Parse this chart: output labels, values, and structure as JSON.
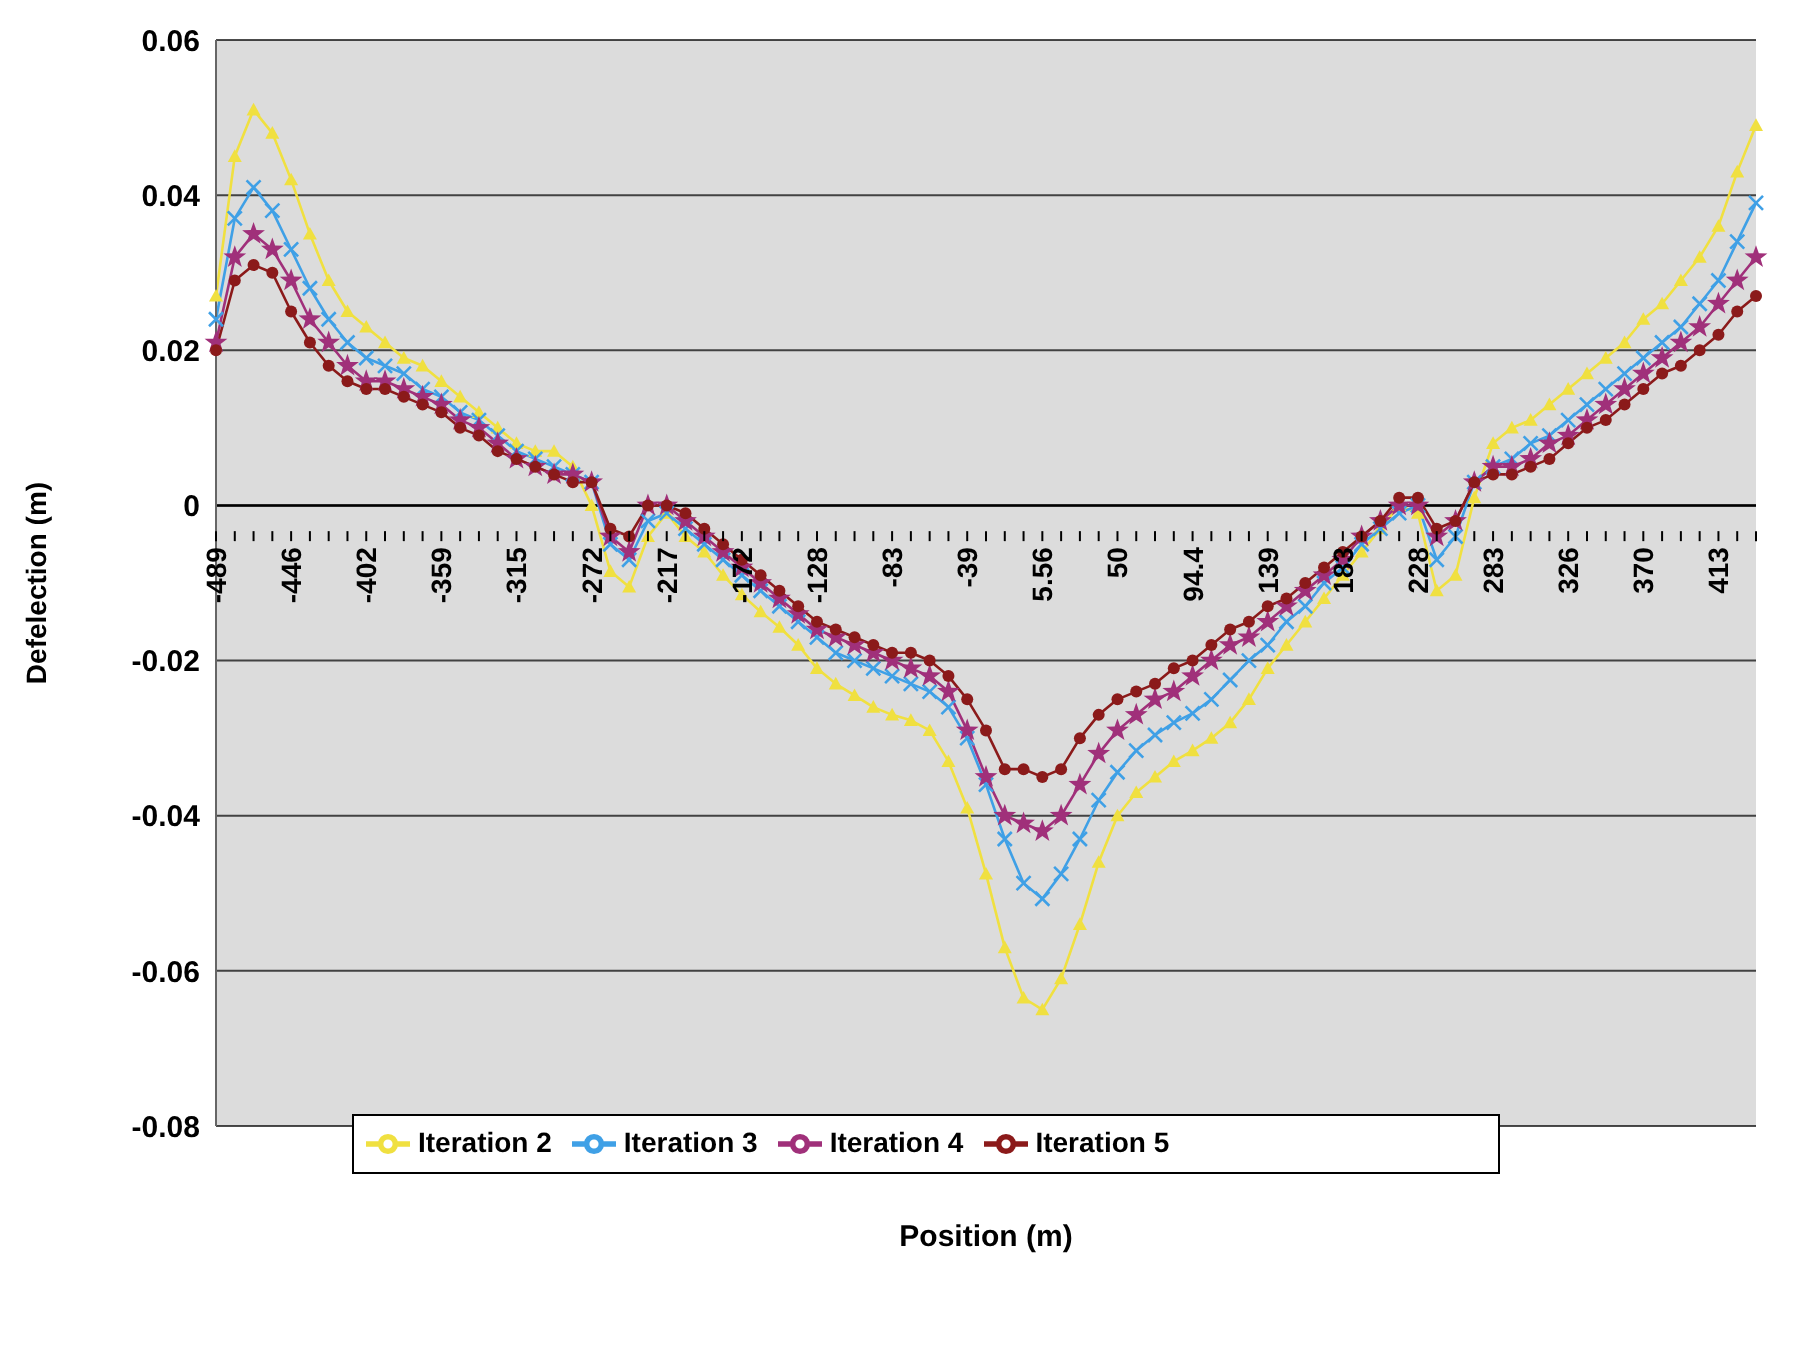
{
  "chart_data": {
    "type": "line",
    "xlabel": "Position (m)",
    "ylabel": "Defelection (m)",
    "categories": [
      "-489",
      null,
      null,
      null,
      "-446",
      null,
      null,
      null,
      "-402",
      null,
      null,
      null,
      "-359",
      null,
      null,
      null,
      "-315",
      null,
      null,
      null,
      "-272",
      null,
      null,
      null,
      "-217",
      null,
      null,
      null,
      "-172",
      null,
      null,
      null,
      "-128",
      null,
      null,
      null,
      "-83",
      null,
      null,
      null,
      "-39",
      null,
      null,
      null,
      "5.56",
      null,
      null,
      null,
      "50",
      null,
      null,
      null,
      "94.4",
      null,
      null,
      null,
      "139",
      null,
      null,
      null,
      "183",
      null,
      null,
      null,
      "228",
      null,
      null,
      null,
      "283",
      null,
      null,
      null,
      "326",
      null,
      null,
      null,
      "370",
      null,
      null,
      null,
      "413",
      null,
      null
    ],
    "ylim": [
      -0.08,
      0.06
    ],
    "yticks": [
      -0.08,
      -0.06,
      -0.04,
      -0.02,
      0,
      0.02,
      0.04,
      0.06
    ],
    "grid": "y",
    "legend": "bottom left",
    "series": [
      {
        "name": "Iteration 2",
        "color": "#f0e040",
        "marker": "triangle",
        "values": [
          0.027,
          0.045,
          0.051,
          0.048,
          0.042,
          0.035,
          0.029,
          0.025,
          0.023,
          0.021,
          0.019,
          0.018,
          0.016,
          0.014,
          0.012,
          0.01,
          0.008,
          0.007,
          0.007,
          0.005,
          0.0,
          -0.0085,
          -0.0105,
          -0.004,
          -0.001,
          -0.004,
          -0.006,
          -0.009,
          -0.0115,
          -0.0137,
          -0.0157,
          -0.018,
          -0.021,
          -0.023,
          -0.0245,
          -0.026,
          -0.027,
          -0.0277,
          -0.029,
          -0.033,
          -0.039,
          -0.0475,
          -0.057,
          -0.0635,
          -0.065,
          -0.061,
          -0.054,
          -0.046,
          -0.04,
          -0.037,
          -0.035,
          -0.033,
          -0.0316,
          -0.03,
          -0.028,
          -0.025,
          -0.021,
          -0.018,
          -0.015,
          -0.012,
          -0.009,
          -0.006,
          -0.003,
          0.0,
          -0.001,
          -0.011,
          -0.009,
          0.001,
          0.008,
          0.01,
          0.011,
          0.013,
          0.015,
          0.017,
          0.019,
          0.021,
          0.024,
          0.026,
          0.029,
          0.032,
          0.036,
          0.043,
          0.049
        ]
      },
      {
        "name": "Iteration 3",
        "color": "#3fa0e6",
        "marker": "cross",
        "values": [
          0.024,
          0.037,
          0.041,
          0.038,
          0.033,
          0.028,
          0.024,
          0.021,
          0.019,
          0.018,
          0.017,
          0.015,
          0.014,
          0.012,
          0.011,
          0.009,
          0.007,
          0.006,
          0.005,
          0.004,
          0.003,
          -0.005,
          -0.007,
          -0.002,
          -0.001,
          -0.003,
          -0.005,
          -0.007,
          -0.009,
          -0.011,
          -0.013,
          -0.015,
          -0.017,
          -0.019,
          -0.02,
          -0.021,
          -0.022,
          -0.023,
          -0.024,
          -0.026,
          -0.03,
          -0.036,
          -0.043,
          -0.0487,
          -0.0507,
          -0.0475,
          -0.043,
          -0.038,
          -0.0344,
          -0.0316,
          -0.0296,
          -0.028,
          -0.0268,
          -0.025,
          -0.0225,
          -0.02,
          -0.018,
          -0.015,
          -0.013,
          -0.01,
          -0.008,
          -0.005,
          -0.003,
          -0.001,
          0.0,
          -0.007,
          -0.004,
          0.003,
          0.005,
          0.006,
          0.008,
          0.009,
          0.011,
          0.013,
          0.015,
          0.017,
          0.019,
          0.021,
          0.023,
          0.026,
          0.029,
          0.034,
          0.039
        ]
      },
      {
        "name": "Iteration 4",
        "color": "#a0307a",
        "marker": "star",
        "values": [
          0.021,
          0.032,
          0.035,
          0.033,
          0.029,
          0.024,
          0.021,
          0.018,
          0.016,
          0.016,
          0.015,
          0.014,
          0.013,
          0.011,
          0.01,
          0.008,
          0.006,
          0.005,
          0.004,
          0.004,
          0.003,
          -0.004,
          -0.006,
          0.0,
          0.0,
          -0.002,
          -0.004,
          -0.006,
          -0.008,
          -0.01,
          -0.012,
          -0.014,
          -0.016,
          -0.017,
          -0.018,
          -0.019,
          -0.02,
          -0.021,
          -0.022,
          -0.024,
          -0.029,
          -0.035,
          -0.04,
          -0.041,
          -0.042,
          -0.04,
          -0.036,
          -0.032,
          -0.029,
          -0.027,
          -0.025,
          -0.024,
          -0.022,
          -0.02,
          -0.018,
          -0.017,
          -0.015,
          -0.013,
          -0.011,
          -0.009,
          -0.007,
          -0.004,
          -0.002,
          0.0,
          0.0,
          -0.004,
          -0.002,
          0.003,
          0.005,
          0.005,
          0.006,
          0.008,
          0.009,
          0.011,
          0.013,
          0.015,
          0.017,
          0.019,
          0.021,
          0.023,
          0.026,
          0.029,
          0.032
        ]
      },
      {
        "name": "Iteration 5",
        "color": "#8b1a1a",
        "marker": "circle",
        "values": [
          0.02,
          0.029,
          0.031,
          0.03,
          0.025,
          0.021,
          0.018,
          0.016,
          0.015,
          0.015,
          0.014,
          0.013,
          0.012,
          0.01,
          0.009,
          0.007,
          0.006,
          0.005,
          0.004,
          0.003,
          0.003,
          -0.003,
          -0.004,
          0.0,
          0.0,
          -0.001,
          -0.003,
          -0.005,
          -0.007,
          -0.009,
          -0.011,
          -0.013,
          -0.015,
          -0.016,
          -0.017,
          -0.018,
          -0.019,
          -0.019,
          -0.02,
          -0.022,
          -0.025,
          -0.029,
          -0.034,
          -0.034,
          -0.035,
          -0.034,
          -0.03,
          -0.027,
          -0.025,
          -0.024,
          -0.023,
          -0.021,
          -0.02,
          -0.018,
          -0.016,
          -0.015,
          -0.013,
          -0.012,
          -0.01,
          -0.008,
          -0.006,
          -0.004,
          -0.002,
          0.001,
          0.001,
          -0.003,
          -0.002,
          0.003,
          0.004,
          0.004,
          0.005,
          0.006,
          0.008,
          0.01,
          0.011,
          0.013,
          0.015,
          0.017,
          0.018,
          0.02,
          0.022,
          0.025,
          0.027
        ]
      }
    ]
  }
}
